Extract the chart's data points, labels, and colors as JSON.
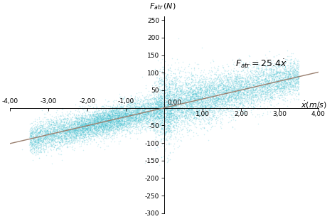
{
  "title": "",
  "xlabel_text": "$\\dot{x}(m/s)$",
  "ylabel_text": "$F_{atr}\\,(N)$",
  "xlim": [
    -4.0,
    4.0
  ],
  "ylim": [
    -300,
    260
  ],
  "xticks": [
    -4.0,
    -3.0,
    -2.0,
    -1.0,
    0.0,
    1.0,
    2.0,
    3.0,
    4.0
  ],
  "yticks": [
    -300,
    -250,
    -200,
    -150,
    -100,
    -50,
    0,
    50,
    100,
    150,
    200,
    250
  ],
  "scatter_color": "#3DBFD0",
  "scatter_alpha": 0.25,
  "scatter_size": 1.2,
  "line_color": "#9A8070",
  "line_slope": 25.4,
  "equation_text": "$F_{atr} = 25.4\\dot{x}$",
  "equation_x": 1.85,
  "equation_y": 108,
  "xlabel_ann_x": 3.55,
  "xlabel_ann_y": 8,
  "n_points": 12000,
  "seed": 42,
  "background_color": "#ffffff",
  "tick_fontsize": 6.5,
  "label_fontsize": 9
}
